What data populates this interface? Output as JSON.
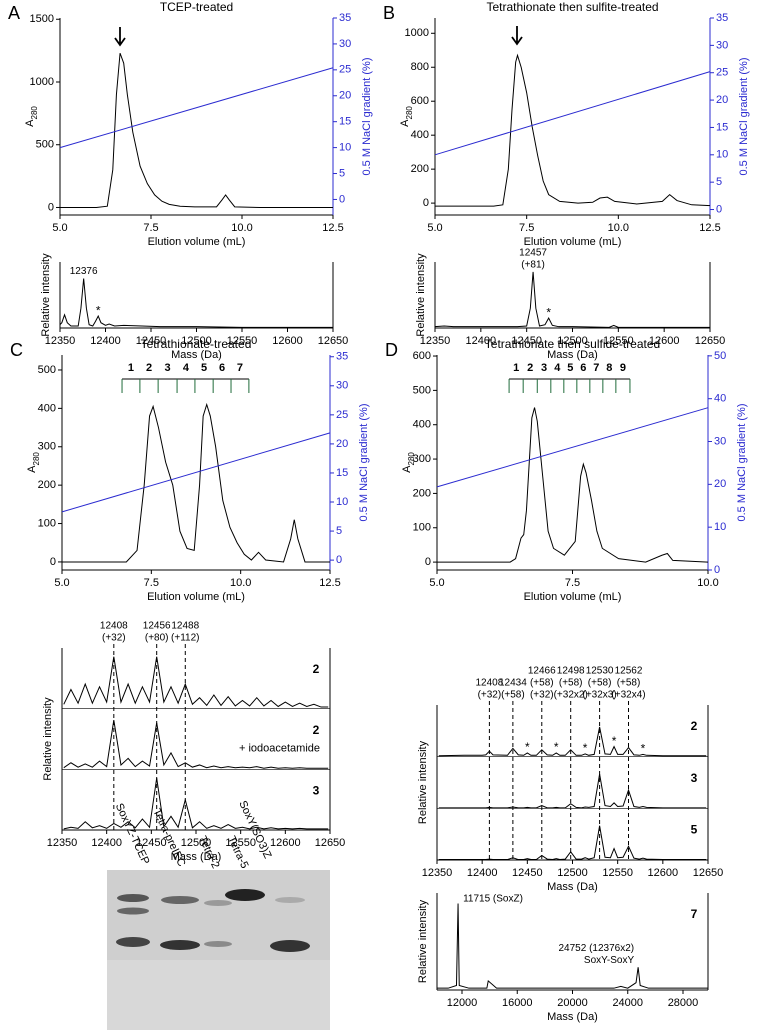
{
  "chart_data": [
    {
      "type": "line",
      "panel": "A",
      "title": "TCEP-treated",
      "xlabel": "Elution volume (mL)",
      "ylabel": "A",
      "ylabel_sub": "280",
      "y2label": "0.5 M NaCl gradient (%)",
      "xlim": [
        5,
        12.5
      ],
      "xticks": [
        {
          "value": 5,
          "label": "5.0"
        },
        7.5,
        {
          "value": 10,
          "label": "10.0"
        },
        12.5
      ],
      "ylim": [
        -60,
        1510
      ],
      "yticks": [
        0,
        500,
        1000,
        1500
      ],
      "y2lim": [
        -3,
        35
      ],
      "y2ticks": [
        0,
        5,
        10,
        15,
        20,
        25,
        30,
        35
      ],
      "x": [
        5.0,
        6.0,
        6.3,
        6.45,
        6.55,
        6.65,
        6.75,
        6.85,
        7.0,
        7.2,
        7.4,
        7.6,
        7.8,
        8.0,
        8.3,
        8.7,
        9.3,
        9.45,
        9.55,
        9.65,
        9.8,
        10.5,
        12.5
      ],
      "series": [
        {
          "color": "#000000",
          "values": [
            0,
            0,
            10,
            300,
            900,
            1230,
            1150,
            900,
            600,
            330,
            190,
            100,
            50,
            25,
            10,
            5,
            5,
            60,
            100,
            60,
            5,
            0,
            0
          ]
        },
        {
          "color": "#2b2bd0",
          "axis": "y2",
          "x": [
            5.0,
            12.5
          ],
          "values": [
            10,
            25.4
          ]
        }
      ]
    },
    {
      "type": "line",
      "xlabel": "Mass (Da)",
      "ylabel": "Relative intensity",
      "xlim": [
        12350,
        12650
      ],
      "xticks": [
        12350,
        12400,
        12450,
        12500,
        12550,
        12600,
        12650
      ],
      "ylim": [
        0,
        100
      ],
      "x": [
        12350,
        12352,
        12355,
        12358,
        12362,
        12370,
        12373,
        12376,
        12379,
        12382,
        12386,
        12389,
        12392,
        12395,
        12400,
        12404,
        12410,
        12420,
        12440,
        12460,
        12500,
        12550,
        12600,
        12650
      ],
      "series": [
        {
          "color": "#000000",
          "values": [
            5,
            8,
            20,
            8,
            3,
            3,
            30,
            75,
            30,
            5,
            3,
            10,
            18,
            8,
            4,
            6,
            3,
            4,
            3,
            2,
            2,
            1,
            1,
            1
          ]
        }
      ],
      "annotations": [
        {
          "x": 12376,
          "lines": [
            "12376"
          ]
        }
      ],
      "star": "*",
      "stars": [
        12392
      ]
    },
    {
      "type": "line",
      "panel": "B",
      "title": "Tetrathionate then sulfite-treated",
      "xlabel": "Elution volume (mL)",
      "ylabel": "A",
      "ylabel_sub": "280",
      "y2label": "0.5 M NaCl gradient (%)",
      "xlim": [
        5,
        12.5
      ],
      "xticks": [
        {
          "value": 5,
          "label": "5.0"
        },
        7.5,
        {
          "value": 10,
          "label": "10.0"
        },
        12.5
      ],
      "ylim": [
        -70,
        1090
      ],
      "yticks": [
        0,
        200,
        400,
        600,
        800,
        1000
      ],
      "y2lim": [
        -1,
        35
      ],
      "y2ticks": [
        0,
        5,
        10,
        15,
        20,
        25,
        30,
        35
      ],
      "x": [
        5.0,
        6.6,
        6.85,
        7.0,
        7.1,
        7.2,
        7.25,
        7.35,
        7.5,
        7.65,
        7.8,
        7.95,
        8.1,
        8.4,
        8.9,
        9.3,
        9.5,
        9.7,
        9.9,
        10.5,
        11.2,
        11.4,
        11.6,
        12.0,
        12.5
      ],
      "series": [
        {
          "color": "#000000",
          "values": [
            -18,
            -18,
            -10,
            200,
            550,
            830,
            870,
            800,
            650,
            450,
            280,
            130,
            50,
            10,
            0,
            5,
            30,
            35,
            10,
            -5,
            10,
            50,
            15,
            -10,
            -15
          ]
        },
        {
          "color": "#2b2bd0",
          "axis": "y2",
          "x": [
            5.0,
            12.5
          ],
          "values": [
            10,
            25.2
          ]
        }
      ]
    },
    {
      "type": "line",
      "xlabel": "Mass (Da)",
      "ylabel": "Relative intensity",
      "xlim": [
        12350,
        12650
      ],
      "xticks": [
        12350,
        12400,
        12450,
        12500,
        12550,
        12600,
        12650
      ],
      "ylim": [
        0,
        100
      ],
      "x": [
        12350,
        12360,
        12370,
        12380,
        12400,
        12420,
        12440,
        12450,
        12454,
        12457,
        12460,
        12464,
        12470,
        12474,
        12478,
        12485,
        12500,
        12540,
        12545,
        12550,
        12600,
        12650
      ],
      "series": [
        {
          "color": "#000000",
          "values": [
            2,
            3,
            2,
            2,
            2,
            2,
            2,
            3,
            30,
            85,
            30,
            3,
            5,
            15,
            4,
            2,
            2,
            1,
            4,
            1,
            1,
            1
          ]
        }
      ],
      "annotations": [
        {
          "x": 12457,
          "lines": [
            "12457",
            "(+81)"
          ]
        }
      ],
      "star": "*",
      "stars": [
        12474
      ]
    },
    {
      "type": "line",
      "panel": "C",
      "title": "Tetrathionate-treated",
      "xlabel": "Elution volume (mL)",
      "ylabel": "A",
      "ylabel_sub": "280",
      "y2label": "0.5 M NaCl gradient (%)",
      "xlim": [
        5,
        12.5
      ],
      "xticks": [
        {
          "value": 5,
          "label": "5.0"
        },
        7.5,
        {
          "value": 10,
          "label": "10.0"
        },
        12.5
      ],
      "ylim": [
        -21,
        539
      ],
      "yticks": [
        0,
        100,
        200,
        300,
        400,
        500
      ],
      "y2lim": [
        -1.7,
        35.3
      ],
      "y2ticks": [
        0,
        5,
        10,
        15,
        20,
        25,
        30,
        35
      ],
      "fractions": [
        1,
        2,
        3,
        4,
        5,
        6,
        7
      ],
      "fraction_edges": [
        6.68,
        7.18,
        7.69,
        8.22,
        8.72,
        9.23,
        9.73,
        10.23
      ],
      "x": [
        5.0,
        6.8,
        7.1,
        7.3,
        7.45,
        7.55,
        7.7,
        7.9,
        8.1,
        8.3,
        8.5,
        8.7,
        8.85,
        8.95,
        9.05,
        9.15,
        9.3,
        9.5,
        9.7,
        9.9,
        10.1,
        10.3,
        10.5,
        10.7,
        11.2,
        11.4,
        11.5,
        11.6,
        11.8,
        12.5
      ],
      "series": [
        {
          "color": "#000000",
          "values": [
            0,
            0,
            30,
            200,
            380,
            405,
            350,
            260,
            200,
            80,
            35,
            30,
            200,
            380,
            410,
            380,
            300,
            160,
            90,
            50,
            20,
            5,
            25,
            5,
            0,
            60,
            110,
            60,
            0,
            0
          ]
        },
        {
          "color": "#2b2bd0",
          "axis": "y2",
          "x": [
            5.0,
            12.5
          ],
          "values": [
            8.3,
            21.9
          ]
        }
      ]
    },
    {
      "type": "line",
      "xlabel": "Mass (Da)",
      "ylabel": "Relative intensity",
      "dashed": true,
      "xlim": [
        12350,
        12650
      ],
      "xticks": [
        12350,
        12400,
        12450,
        12500,
        12550,
        12600,
        12650
      ],
      "ylim": [
        0,
        100
      ],
      "x": [
        12352,
        12360,
        12368,
        12376,
        12384,
        12392,
        12400,
        12408,
        12416,
        12424,
        12432,
        12440,
        12448,
        12456,
        12464,
        12472,
        12480,
        12488,
        12496,
        12504,
        12512,
        12520,
        12528,
        12536,
        12544,
        12552,
        12560,
        12568,
        12576,
        12584,
        12592,
        12600,
        12608,
        12616,
        12624,
        12632,
        12640,
        12648
      ],
      "series": [
        {
          "name": "2",
          "color": "#000000",
          "values": [
            8,
            35,
            10,
            45,
            10,
            40,
            12,
            95,
            12,
            45,
            10,
            40,
            12,
            95,
            12,
            40,
            10,
            45,
            8,
            20,
            6,
            25,
            6,
            22,
            5,
            15,
            5,
            20,
            5,
            15,
            4,
            12,
            4,
            10,
            4,
            8,
            3,
            3
          ]
        },
        {
          "name": "2",
          "note": "+ iodoacetamide",
          "color": "#000000",
          "values": [
            3,
            12,
            4,
            10,
            4,
            15,
            5,
            90,
            8,
            20,
            5,
            15,
            6,
            85,
            8,
            30,
            5,
            12,
            4,
            8,
            3,
            6,
            3,
            5,
            3,
            4,
            3,
            5,
            2,
            4,
            2,
            3,
            2,
            3,
            2,
            2,
            2,
            2
          ]
        },
        {
          "name": "3",
          "color": "#000000",
          "values": [
            2,
            5,
            3,
            15,
            4,
            8,
            3,
            12,
            5,
            15,
            4,
            20,
            5,
            95,
            6,
            25,
            5,
            55,
            4,
            15,
            3,
            8,
            3,
            10,
            3,
            5,
            2,
            5,
            2,
            4,
            2,
            3,
            2,
            3,
            2,
            2,
            2,
            2
          ]
        }
      ],
      "annotations": [
        {
          "x": 12408,
          "lines": [
            "12408",
            "(+32)"
          ]
        },
        {
          "x": 12456,
          "lines": [
            "12456",
            "(+80)"
          ]
        },
        {
          "x": 12488,
          "lines": [
            "12488",
            "(+112)"
          ]
        }
      ]
    },
    {
      "type": "line",
      "panel": "D",
      "title": "Tetrathionate then sulfide-treated",
      "xlabel": "Elution volume (mL)",
      "ylabel": "A",
      "ylabel_sub": "280",
      "y2label": "0.5 M NaCl gradient (%)",
      "xlim": [
        5,
        10
      ],
      "xticks": [
        {
          "value": 5,
          "label": "5.0"
        },
        7.5,
        {
          "value": 10,
          "label": "10.0"
        }
      ],
      "ylim": [
        -23,
        603
      ],
      "yticks": [
        0,
        100,
        200,
        300,
        400,
        500,
        600
      ],
      "y2lim": [
        0,
        50.2
      ],
      "y2ticks": [
        0,
        10,
        20,
        30,
        40,
        50
      ],
      "fractions": [
        1,
        2,
        3,
        4,
        5,
        6,
        7,
        8,
        9
      ],
      "fraction_edges": [
        6.33,
        6.59,
        6.85,
        7.1,
        7.34,
        7.58,
        7.82,
        8.06,
        8.3,
        8.56
      ],
      "x": [
        5.0,
        6.35,
        6.45,
        6.55,
        6.6,
        6.65,
        6.75,
        6.8,
        6.85,
        6.95,
        7.05,
        7.15,
        7.35,
        7.55,
        7.65,
        7.7,
        7.75,
        7.85,
        7.95,
        8.05,
        8.35,
        8.85,
        9.15,
        9.25,
        9.35,
        10.0
      ],
      "series": [
        {
          "color": "#000000",
          "values": [
            0,
            0,
            10,
            70,
            80,
            150,
            420,
            450,
            410,
            250,
            90,
            40,
            20,
            60,
            250,
            285,
            260,
            180,
            90,
            40,
            10,
            0,
            20,
            25,
            5,
            0
          ]
        },
        {
          "color": "#2b2bd0",
          "axis": "y2",
          "x": [
            5.0,
            10.0
          ],
          "values": [
            19.4,
            37.9
          ]
        }
      ]
    },
    {
      "type": "line",
      "xlabel": "Mass (Da)",
      "ylabel": "Relative intensity",
      "dashed": true,
      "xlim": [
        12350,
        12650
      ],
      "xticks": [
        12350,
        12400,
        12450,
        12500,
        12550,
        12600,
        12650
      ],
      "ylim": [
        0,
        100
      ],
      "x": [
        12352,
        12380,
        12400,
        12404,
        12408,
        12412,
        12428,
        12434,
        12440,
        12446,
        12450,
        12454,
        12460,
        12466,
        12472,
        12478,
        12482,
        12486,
        12492,
        12498,
        12504,
        12510,
        12514,
        12518,
        12524,
        12530,
        12536,
        12542,
        12546,
        12550,
        12556,
        12562,
        12568,
        12574,
        12578,
        12582,
        12600,
        12648
      ],
      "series": [
        {
          "name": "2",
          "color": "#000000",
          "values": [
            2,
            3,
            3,
            4,
            12,
            4,
            3,
            18,
            4,
            3,
            8,
            3,
            3,
            15,
            4,
            3,
            8,
            3,
            3,
            15,
            3,
            3,
            6,
            3,
            5,
            65,
            6,
            5,
            22,
            5,
            5,
            20,
            4,
            3,
            5,
            3,
            2,
            2
          ]
        },
        {
          "name": "3",
          "color": "#000000",
          "values": [
            1,
            1,
            1,
            1,
            2,
            1,
            1,
            3,
            1,
            1,
            2,
            1,
            1,
            6,
            1,
            1,
            2,
            1,
            1,
            10,
            2,
            1,
            3,
            2,
            4,
            75,
            6,
            4,
            12,
            4,
            5,
            40,
            4,
            2,
            4,
            2,
            1,
            1
          ]
        },
        {
          "name": "5",
          "color": "#000000",
          "values": [
            1,
            1,
            1,
            1,
            2,
            1,
            1,
            5,
            1,
            1,
            3,
            1,
            1,
            10,
            2,
            1,
            3,
            1,
            2,
            18,
            2,
            2,
            5,
            2,
            5,
            75,
            6,
            5,
            25,
            5,
            6,
            30,
            4,
            2,
            4,
            2,
            1,
            1
          ]
        }
      ],
      "annotations": [
        {
          "x": 12408,
          "lines": [
            "12408",
            "(+32)"
          ]
        },
        {
          "x": 12434,
          "lines": [
            "12434",
            "(+58)"
          ]
        },
        {
          "x": 12466,
          "lines": [
            "12466",
            "(+58)",
            "(+32)"
          ]
        },
        {
          "x": 12498,
          "lines": [
            "12498",
            "(+58)",
            "(+32x2)"
          ]
        },
        {
          "x": 12530,
          "lines": [
            "12530",
            "(+58)",
            "(+32x3)"
          ]
        },
        {
          "x": 12562,
          "lines": [
            "12562",
            "(+58)",
            "(+32x4)"
          ]
        }
      ],
      "star": "*",
      "stars": [
        12450,
        12482,
        12514,
        12546,
        12578
      ]
    },
    {
      "type": "line",
      "xlabel": "Mass (Da)",
      "ylabel": "Relative intensity",
      "xlim": [
        10190,
        29810
      ],
      "xticks": [
        12000,
        16000,
        20000,
        24000,
        28000
      ],
      "ylim": [
        0,
        100
      ],
      "x": [
        10190,
        11000,
        11600,
        11715,
        11800,
        12500,
        13800,
        13900,
        14500,
        20000,
        23000,
        23500,
        24000,
        24600,
        24752,
        24900,
        25500,
        29810
      ],
      "series": [
        {
          "name": "7",
          "color": "#000000",
          "values": [
            2,
            2,
            5,
            95,
            5,
            2,
            2,
            10,
            2,
            2,
            2,
            4,
            2,
            8,
            25,
            5,
            2,
            2
          ]
        }
      ],
      "annotations": [
        {
          "x": 11715,
          "lines": [
            "11715 (SoxZ)"
          ]
        },
        {
          "x": 24752,
          "lines": [
            "24752 (12376x2)",
            "SoxY-SoxY"
          ]
        }
      ]
    }
  ],
  "gel": {
    "lanes": [
      "SoxYZ-TCEP",
      "Tetra-preIEC",
      "Tetra-2",
      "Tetra-5",
      "SoxY(SO3)Z"
    ]
  }
}
